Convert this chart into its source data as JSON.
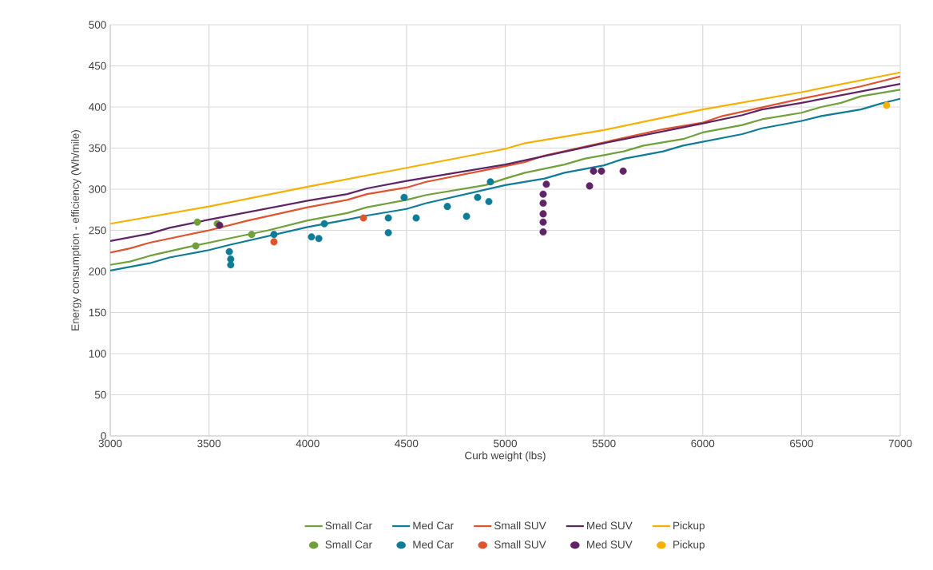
{
  "chart_data": {
    "type": "line",
    "xlabel": "Curb weight (lbs)",
    "ylabel": "Energy consumption - efficiency (Wh/mile)",
    "xlim": [
      3000,
      7000
    ],
    "ylim": [
      0,
      500
    ],
    "xticks": [
      3000,
      3500,
      4000,
      4500,
      5000,
      5500,
      6000,
      6500,
      7000
    ],
    "yticks": [
      0,
      50,
      100,
      150,
      200,
      250,
      300,
      350,
      400,
      450,
      500
    ],
    "grid": true,
    "legend": "bottom",
    "series": [
      {
        "name": "Small Car",
        "marker": "none",
        "color": "#70a03c",
        "x": [
          3000,
          3100,
          3200,
          3400,
          3600,
          3800,
          4000,
          4200,
          4300,
          4500,
          4600,
          4900,
          5000,
          5100,
          5300,
          5400,
          5600,
          5700,
          5900,
          6000,
          6200,
          6300,
          6500,
          6600,
          6700,
          6800,
          7000
        ],
        "values": [
          208,
          212,
          219,
          230,
          240,
          250,
          262,
          271,
          278,
          287,
          293,
          305,
          313,
          320,
          330,
          337,
          346,
          353,
          361,
          369,
          378,
          385,
          393,
          400,
          405,
          413,
          421
        ]
      },
      {
        "name": "Med Car",
        "marker": "none",
        "color": "#0e7c96",
        "x": [
          3000,
          3200,
          3300,
          3500,
          3600,
          4000,
          4200,
          4300,
          4500,
          4600,
          5000,
          5200,
          5300,
          5500,
          5600,
          5800,
          5900,
          6200,
          6300,
          6500,
          6600,
          6800,
          6900,
          7000
        ],
        "values": [
          201,
          210,
          217,
          226,
          232,
          254,
          263,
          268,
          276,
          283,
          305,
          313,
          320,
          329,
          337,
          346,
          353,
          367,
          374,
          383,
          389,
          397,
          404,
          410
        ]
      },
      {
        "name": "Small SUV",
        "marker": "none",
        "color": "#e0532f",
        "x": [
          3000,
          3100,
          3200,
          3500,
          3700,
          4000,
          4200,
          4300,
          4500,
          4600,
          5000,
          5100,
          5200,
          5500,
          5800,
          6000,
          6100,
          6500,
          6800,
          7000
        ],
        "values": [
          223,
          228,
          235,
          250,
          262,
          278,
          287,
          294,
          302,
          309,
          328,
          333,
          341,
          357,
          373,
          381,
          389,
          410,
          425,
          437
        ]
      },
      {
        "name": "Med SUV",
        "marker": "none",
        "color": "#5e2466",
        "x": [
          3000,
          3200,
          3300,
          3500,
          4000,
          4200,
          4300,
          4500,
          5000,
          5500,
          6000,
          6200,
          6300,
          6500,
          7000
        ],
        "values": [
          237,
          246,
          253,
          263,
          286,
          294,
          301,
          310,
          330,
          356,
          380,
          390,
          397,
          405,
          428
        ]
      },
      {
        "name": "Pickup",
        "marker": "none",
        "color": "#f5b000",
        "x": [
          3000,
          3500,
          4000,
          4500,
          5000,
          5100,
          5500,
          6000,
          6500,
          7000
        ],
        "values": [
          258,
          279,
          303,
          326,
          349,
          356,
          372,
          397,
          418,
          442
        ]
      },
      {
        "name": "Small Car",
        "type": "scatter",
        "marker": "circle",
        "color": "#70a03c",
        "x": [
          3441,
          3433,
          3716,
          3542
        ],
        "values": [
          260,
          231,
          245,
          258
        ]
      },
      {
        "name": "Med Car",
        "type": "scatter",
        "marker": "circle",
        "color": "#0e7c96",
        "x": [
          3603,
          3610,
          3610,
          3829,
          4019,
          4056,
          4084,
          4408,
          4408,
          4488,
          4549,
          4707,
          4804,
          4860,
          4917,
          4925
        ],
        "values": [
          224,
          215,
          208,
          245,
          242,
          240,
          258,
          265,
          247,
          290,
          265,
          279,
          267,
          290,
          285,
          309
        ]
      },
      {
        "name": "Small SUV",
        "type": "scatter",
        "marker": "circle",
        "color": "#e0532f",
        "x": [
          3829,
          4282
        ],
        "values": [
          236,
          265
        ]
      },
      {
        "name": "Med SUV",
        "type": "scatter",
        "marker": "circle",
        "color": "#5e2466",
        "x": [
          3554,
          5208,
          5192,
          5192,
          5192,
          5192,
          5192,
          5427,
          5447,
          5487,
          5597
        ],
        "values": [
          256,
          306,
          294,
          283,
          270,
          260,
          248,
          304,
          322,
          322,
          322
        ]
      },
      {
        "name": "Pickup",
        "type": "scatter",
        "marker": "circle",
        "color": "#f5b000",
        "x": [
          6931
        ],
        "values": [
          402
        ]
      }
    ]
  }
}
